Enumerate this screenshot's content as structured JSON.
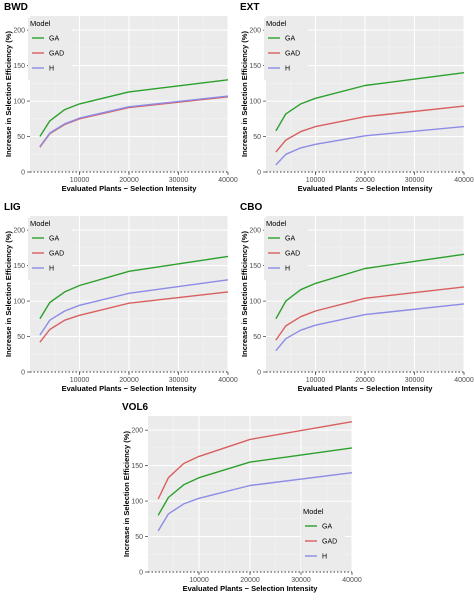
{
  "colors": {
    "panel_bg": "#ebebeb",
    "grid_major": "#ffffff",
    "grid_minor": "#f5f5f5",
    "axis_text": "#4d4d4d",
    "title_text": "#000000",
    "ga": "#2ca02c",
    "gad": "#d95f5f",
    "h": "#8c8ce6"
  },
  "chart_data": [
    {
      "type": "line",
      "title": "BWD",
      "xlabel": "Evaluated Plants − Selection Intensity",
      "ylabel": "Increase in Selection Efficiency (%)",
      "xlim": [
        0,
        40000
      ],
      "ylim": [
        0,
        220
      ],
      "x_ticks": [
        10000,
        20000,
        30000,
        40000
      ],
      "x_tick_labels": [
        "10000",
        "20000",
        "30000",
        "40000"
      ],
      "y_ticks": [
        0,
        50,
        100,
        150,
        200
      ],
      "y_tick_labels": [
        "0",
        "50",
        "100",
        "150",
        "200"
      ],
      "legend_title": "Model",
      "legend_position": "top-left",
      "x": [
        2000,
        4000,
        7000,
        10000,
        20000,
        40000
      ],
      "series": [
        {
          "name": "GA",
          "values": [
            50,
            72,
            88,
            96,
            113,
            130
          ]
        },
        {
          "name": "GAD",
          "values": [
            35,
            54,
            67,
            75,
            91,
            106
          ]
        },
        {
          "name": "H",
          "values": [
            36,
            55,
            68,
            76,
            92,
            107
          ]
        }
      ]
    },
    {
      "type": "line",
      "title": "EXT",
      "xlabel": "Evaluated Plants − Selection Intensity",
      "ylabel": "Increase in Selection Efficiency (%)",
      "xlim": [
        0,
        40000
      ],
      "ylim": [
        0,
        220
      ],
      "x_ticks": [
        10000,
        20000,
        30000,
        40000
      ],
      "x_tick_labels": [
        "10000",
        "20000",
        "30000",
        "40000"
      ],
      "y_ticks": [
        0,
        50,
        100,
        150,
        200
      ],
      "y_tick_labels": [
        "0",
        "50",
        "100",
        "150",
        "200"
      ],
      "legend_title": "Model",
      "legend_position": "top-left",
      "x": [
        2000,
        4000,
        7000,
        10000,
        20000,
        40000
      ],
      "series": [
        {
          "name": "GA",
          "values": [
            58,
            82,
            96,
            104,
            122,
            140
          ]
        },
        {
          "name": "GAD",
          "values": [
            28,
            45,
            57,
            64,
            78,
            93
          ]
        },
        {
          "name": "H",
          "values": [
            10,
            25,
            34,
            39,
            51,
            64
          ]
        }
      ]
    },
    {
      "type": "line",
      "title": "LIG",
      "xlabel": "Evaluated Plants − Selection Intensity",
      "ylabel": "Increase in Selection Efficiency (%)",
      "xlim": [
        0,
        40000
      ],
      "ylim": [
        0,
        220
      ],
      "x_ticks": [
        10000,
        20000,
        30000,
        40000
      ],
      "x_tick_labels": [
        "10000",
        "20000",
        "30000",
        "40000"
      ],
      "y_ticks": [
        0,
        50,
        100,
        150,
        200
      ],
      "y_tick_labels": [
        "0",
        "50",
        "100",
        "150",
        "200"
      ],
      "legend_title": "Model",
      "legend_position": "top-left",
      "x": [
        2000,
        4000,
        7000,
        10000,
        20000,
        40000
      ],
      "series": [
        {
          "name": "GA",
          "values": [
            75,
            98,
            113,
            122,
            142,
            163
          ]
        },
        {
          "name": "GAD",
          "values": [
            42,
            60,
            73,
            80,
            97,
            113
          ]
        },
        {
          "name": "H",
          "values": [
            52,
            73,
            86,
            94,
            111,
            130
          ]
        }
      ]
    },
    {
      "type": "line",
      "title": "CBO",
      "xlabel": "Evaluated Plants − Selection Intensity",
      "ylabel": "Increase in Selection Efficiency (%)",
      "xlim": [
        0,
        40000
      ],
      "ylim": [
        0,
        220
      ],
      "x_ticks": [
        10000,
        20000,
        30000,
        40000
      ],
      "x_tick_labels": [
        "10000",
        "20000",
        "30000",
        "40000"
      ],
      "y_ticks": [
        0,
        50,
        100,
        150,
        200
      ],
      "y_tick_labels": [
        "0",
        "50",
        "100",
        "150",
        "200"
      ],
      "legend_title": "Model",
      "legend_position": "top-left",
      "x": [
        2000,
        4000,
        7000,
        10000,
        20000,
        40000
      ],
      "series": [
        {
          "name": "GA",
          "values": [
            75,
            100,
            116,
            125,
            146,
            166
          ]
        },
        {
          "name": "GAD",
          "values": [
            45,
            65,
            78,
            86,
            104,
            120
          ]
        },
        {
          "name": "H",
          "values": [
            30,
            47,
            59,
            66,
            81,
            96
          ]
        }
      ]
    },
    {
      "type": "line",
      "title": "VOL6",
      "xlabel": "Evaluated Plants − Selection Intensity",
      "ylabel": "Increase in Selection Efficiency (%)",
      "xlim": [
        0,
        40000
      ],
      "ylim": [
        0,
        220
      ],
      "x_ticks": [
        10000,
        20000,
        30000,
        40000
      ],
      "x_tick_labels": [
        "10000",
        "20000",
        "30000",
        "40000"
      ],
      "y_ticks": [
        0,
        50,
        100,
        150,
        200
      ],
      "y_tick_labels": [
        "0",
        "50",
        "100",
        "150",
        "200"
      ],
      "legend_title": "Model",
      "legend_position": "bottom-right",
      "x": [
        2000,
        4000,
        7000,
        10000,
        20000,
        40000
      ],
      "series": [
        {
          "name": "GA",
          "values": [
            80,
            105,
            123,
            133,
            155,
            175
          ]
        },
        {
          "name": "GAD",
          "values": [
            103,
            133,
            153,
            163,
            187,
            212
          ]
        },
        {
          "name": "H",
          "values": [
            58,
            82,
            96,
            104,
            122,
            140
          ]
        }
      ]
    }
  ]
}
